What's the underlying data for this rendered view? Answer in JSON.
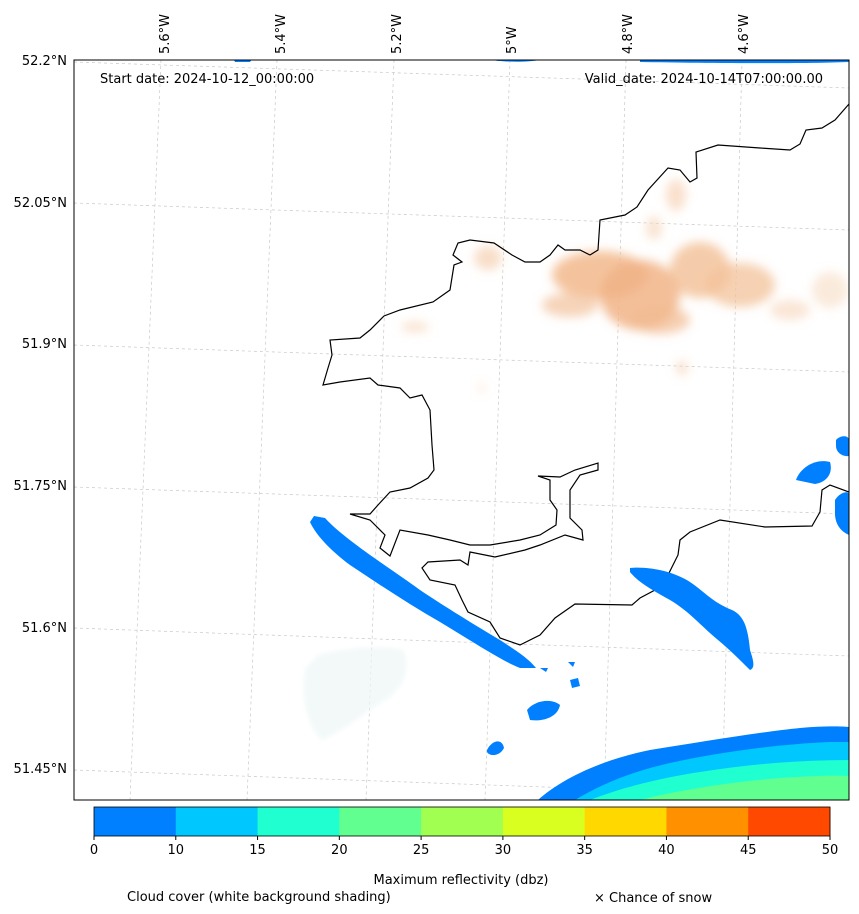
{
  "map": {
    "start_date": "Start date: 2024-10-12_00:00:00",
    "valid_date": "Valid_date: 2024-10-14T07:00:00.00",
    "lat_labels": [
      "52.2°N",
      "52.05°N",
      "51.9°N",
      "51.75°N",
      "51.6°N",
      "51.45°N"
    ],
    "lon_labels": [
      "5.6°W",
      "5.4°W",
      "5.2°W",
      "5°W",
      "4.8°W",
      "4.6°W"
    ]
  },
  "colorbar": {
    "title": "Maximum reflectivity (dbz)",
    "ticks": [
      "0",
      "10",
      "15",
      "20",
      "25",
      "30",
      "35",
      "40",
      "45",
      "50"
    ],
    "colors": [
      "#0080ff",
      "#00c8ff",
      "#20ffd0",
      "#60ff90",
      "#a0ff50",
      "#d8ff20",
      "#ffd800",
      "#ff9000",
      "#ff4800"
    ]
  },
  "legend": {
    "cloud_cover": "Cloud cover (white background shading)",
    "snow": "× Chance of snow"
  }
}
